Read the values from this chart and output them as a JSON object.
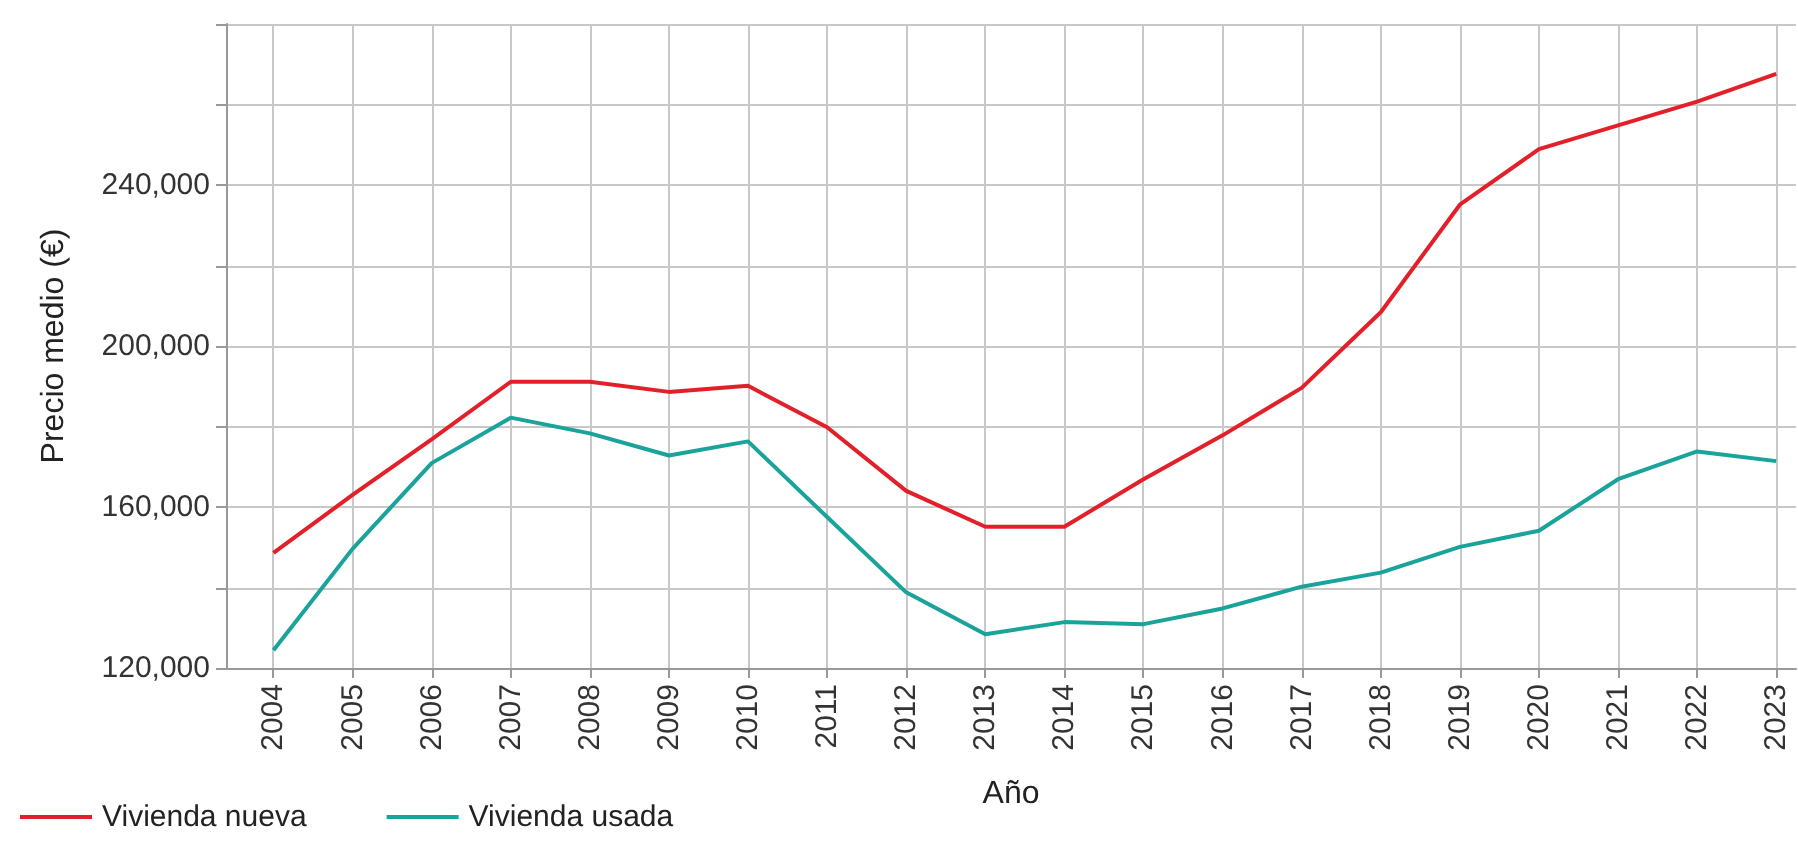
{
  "chart_data": {
    "type": "line",
    "xlabel": "Año",
    "ylabel": "Precio medio (€)",
    "x": [
      2004,
      2005,
      2006,
      2007,
      2008,
      2009,
      2010,
      2011,
      2012,
      2013,
      2014,
      2015,
      2016,
      2017,
      2018,
      2019,
      2020,
      2021,
      2022,
      2023
    ],
    "series": [
      {
        "name": "Vivienda nueva",
        "color": "#e3202a",
        "values": [
          148600,
          163000,
          176800,
          191100,
          191100,
          188600,
          190100,
          179800,
          164000,
          155100,
          155100,
          166900,
          177800,
          189600,
          208400,
          235100,
          248900,
          254800,
          260700,
          267600
        ]
      },
      {
        "name": "Vivienda usada",
        "color": "#1aa39a",
        "values": [
          124400,
          149600,
          170900,
          182200,
          178300,
          172800,
          176300,
          157500,
          138800,
          128400,
          131400,
          130900,
          134800,
          140200,
          143700,
          150100,
          154100,
          166900,
          173800,
          171400
        ]
      }
    ],
    "xlim": [
      2003.4,
      2023.25
    ],
    "xticks": [
      2004,
      2005,
      2006,
      2007,
      2008,
      2009,
      2010,
      2011,
      2012,
      2013,
      2014,
      2015,
      2016,
      2017,
      2018,
      2019,
      2020,
      2021,
      2022,
      2023
    ],
    "ylim": [
      120000,
      280000
    ],
    "yticks": [
      {
        "value": 120000,
        "label": "120,000"
      },
      {
        "value": 140000,
        "label": null
      },
      {
        "value": 160000,
        "label": "160,000"
      },
      {
        "value": 180000,
        "label": null
      },
      {
        "value": 200000,
        "label": "200,000"
      },
      {
        "value": 220000,
        "label": null
      },
      {
        "value": 240000,
        "label": "240,000"
      },
      {
        "value": 260000,
        "label": null
      },
      {
        "value": 280000,
        "label": null
      }
    ],
    "grid": true,
    "legend": "bottom left",
    "marker": "none",
    "line_style": "solid"
  }
}
